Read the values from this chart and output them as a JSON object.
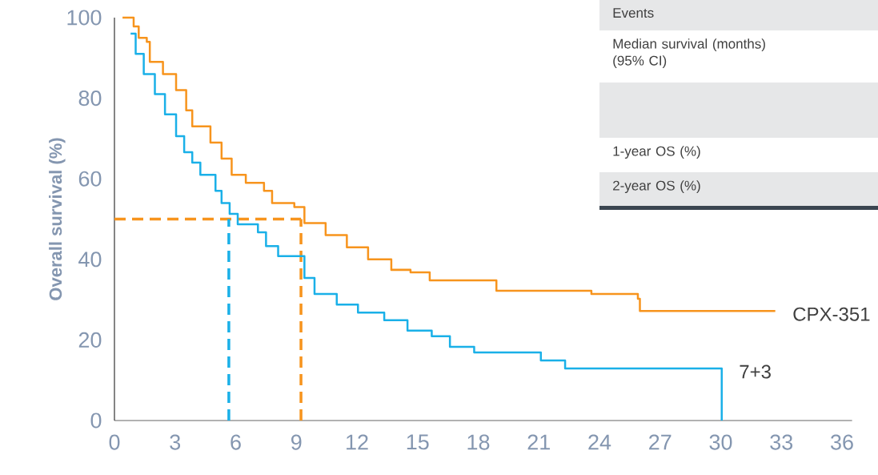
{
  "chart_data": {
    "type": "step",
    "ylabel": "Overall survival (%)",
    "xlim": [
      0,
      36.5
    ],
    "ylim": [
      0,
      100
    ],
    "xticks": [
      0,
      3,
      6,
      9,
      12,
      15,
      18,
      21,
      24,
      27,
      30,
      33,
      36
    ],
    "yticks": [
      0,
      20,
      40,
      60,
      80,
      100
    ],
    "grid": false,
    "marker": "none",
    "series": [
      {
        "name": "CPX-351",
        "color": "#f7941d",
        "x": [
          0.4,
          0.95,
          1.2,
          1.6,
          1.75,
          2.4,
          3.05,
          3.55,
          3.85,
          4.75,
          5.3,
          5.8,
          6.5,
          7.4,
          7.8,
          8.9,
          9.4,
          10.45,
          11.5,
          12.55,
          13.7,
          14.65,
          15.6,
          18.5,
          18.9,
          23.6,
          25.2,
          25.9,
          26.0,
          32.7
        ],
        "values": [
          100,
          97.8,
          95,
          94,
          89,
          86,
          82,
          77,
          73,
          69,
          65,
          61,
          59,
          57,
          54,
          53,
          49,
          46,
          43,
          40,
          37.4,
          36.8,
          34.8,
          34.8,
          32.2,
          31.4,
          31.4,
          30.2,
          27.2,
          27.2
        ]
      },
      {
        "name": "7+3",
        "color": "#1ab0e8",
        "x": [
          0.8,
          1.05,
          1.45,
          2.0,
          2.5,
          3.05,
          3.45,
          3.85,
          4.25,
          5.0,
          5.3,
          5.7,
          6.1,
          7.1,
          7.5,
          8.1,
          9.4,
          9.9,
          11.0,
          12.05,
          13.35,
          14.5,
          15.7,
          16.6,
          17.8,
          21.1,
          22.3,
          30.05,
          30.05
        ],
        "values": [
          96,
          91,
          86,
          81,
          76,
          70.6,
          66.6,
          64,
          61,
          57,
          54,
          51.3,
          48.7,
          46.7,
          43.3,
          40.8,
          35.4,
          31.4,
          28.8,
          26.8,
          24.9,
          22.3,
          20.9,
          18.3,
          16.9,
          14.9,
          12.9,
          12.9,
          0
        ]
      }
    ],
    "ref_lines": [
      {
        "axis": "y",
        "value": 50,
        "color": "#f7941d",
        "line_style": "dashed"
      },
      {
        "axis": "x",
        "value": 5.66,
        "color": "#1ab0e8",
        "line_style": "dashed"
      },
      {
        "axis": "x",
        "value": 9.23,
        "color": "#f7941d",
        "line_style": "dashed"
      }
    ],
    "annotations": [
      "Events",
      "Median survival (months) (95% CI)",
      "1-year OS (%)",
      "2-year OS (%)"
    ]
  }
}
